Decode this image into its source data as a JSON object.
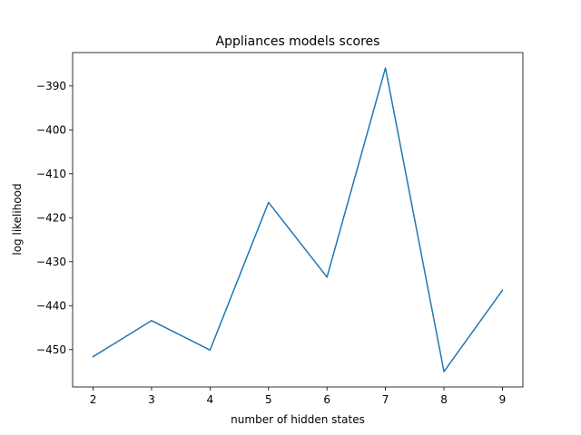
{
  "chart_data": {
    "type": "line",
    "title": "Appliances models scores",
    "xlabel": "number of hidden states",
    "ylabel": "log likelihood",
    "x": [
      2,
      3,
      4,
      5,
      6,
      7,
      8,
      9
    ],
    "series": [
      {
        "values": [
          -451.6,
          -443.4,
          -450.1,
          -416.5,
          -433.5,
          -385.9,
          -455.0,
          -436.5
        ]
      }
    ],
    "xticks": [
      "2",
      "3",
      "4",
      "5",
      "6",
      "7",
      "8",
      "9"
    ],
    "yticks": [
      "−390",
      "−400",
      "−410",
      "−420",
      "−430",
      "−440",
      "−450"
    ],
    "ytick_values": [
      -390,
      -400,
      -410,
      -420,
      -430,
      -440,
      -450
    ],
    "xlim": [
      1.65,
      9.35
    ],
    "ylim": [
      -458.5,
      -382.4
    ],
    "grid": false,
    "line_color": "#1f77b4"
  }
}
